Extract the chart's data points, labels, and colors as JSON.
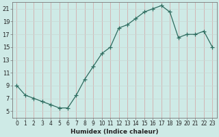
{
  "x": [
    0,
    1,
    2,
    3,
    4,
    5,
    6,
    7,
    8,
    9,
    10,
    11,
    12,
    13,
    14,
    15,
    16,
    17,
    18,
    19,
    20,
    21,
    22,
    23
  ],
  "y": [
    9,
    7.5,
    7,
    6.5,
    6,
    5.5,
    5.5,
    7.5,
    10,
    12,
    14,
    15,
    18,
    18.5,
    19.5,
    20.5,
    21,
    21.5,
    20.5,
    16.5,
    17,
    17,
    17.5,
    15
  ],
  "xlabel": "Humidex (Indice chaleur)",
  "xlim": [
    -0.5,
    23.5
  ],
  "ylim": [
    4,
    22
  ],
  "yticks": [
    5,
    7,
    9,
    11,
    13,
    15,
    17,
    19,
    21
  ],
  "xticks": [
    0,
    1,
    2,
    3,
    4,
    5,
    6,
    7,
    8,
    9,
    10,
    11,
    12,
    13,
    14,
    15,
    16,
    17,
    18,
    19,
    20,
    21,
    22,
    23
  ],
  "line_color": "#2d6b5e",
  "marker_color": "#2d6b5e",
  "bg_color": "#ceeae6",
  "grid_color_major": "#b8d8d4",
  "grid_color_minor": "#e8f6f4",
  "axis_color": "#777777",
  "font_color": "#222222",
  "tick_fontsize": 5.5,
  "xlabel_fontsize": 6.5
}
